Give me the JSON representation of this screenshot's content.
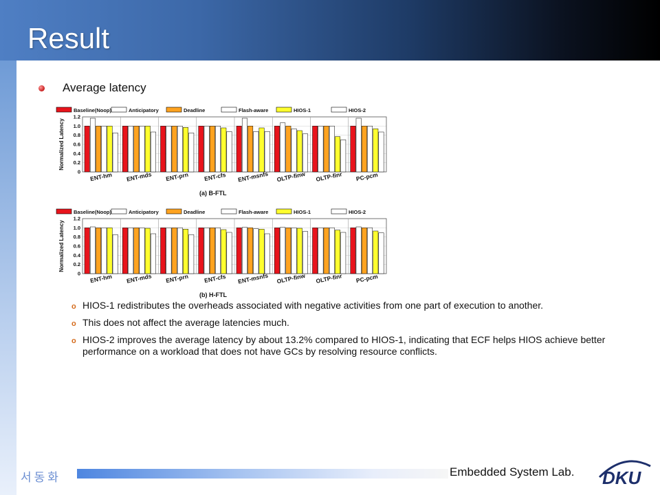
{
  "slide": {
    "title": "Result",
    "bullet": "Average latency",
    "sub_bullets": [
      "HIOS-1 redistributes the overheads associated with negative activities from one part of execution to another.",
      "This does not affect the average latencies much.",
      "HIOS-2 improves the average latency by about 13.2% compared to HIOS-1, indicating that ECF helps HIOS achieve better performance on a workload that does not have GCs by resolving resource conflicts."
    ],
    "footer_left": "서동화",
    "footer_lab": "Embedded System Lab.",
    "logo_text": "DKU"
  },
  "colors": {
    "header_start": "#4f7fc4",
    "header_end": "#000000",
    "bullet": "#c61b1b",
    "sub_marker": "#d46a1a",
    "footer_left": "#6b8ed2",
    "logo": "#1d2f6b"
  },
  "chart_data": [
    {
      "type": "bar",
      "title": "(a) B-FTL",
      "ylabel": "Normalized Latency",
      "ylim": [
        0,
        1.2
      ],
      "yticks": [
        0,
        0.2,
        0.4,
        0.6,
        0.8,
        1.0,
        1.2
      ],
      "ytick_labels": [
        "0",
        "0.2",
        "0.4",
        "0.6",
        "0.8",
        "1.0",
        "1.2"
      ],
      "categories": [
        "ENT-hm",
        "ENT-mds",
        "ENT-prn",
        "ENT-cfs",
        "ENT-msnfs",
        "OLTP-finw",
        "OLTP-finr",
        "PC-pcm"
      ],
      "legend_position": "top",
      "series": [
        {
          "name": "Baseline(Noop)",
          "color": "#e8141c",
          "values": [
            1.0,
            1.0,
            1.0,
            1.0,
            1.0,
            1.0,
            1.0,
            1.0
          ]
        },
        {
          "name": "Anticipatory",
          "color": "#ffffff",
          "values": [
            1.17,
            1.0,
            1.0,
            1.0,
            1.17,
            1.07,
            1.0,
            1.17
          ]
        },
        {
          "name": "Deadline",
          "color": "#ffa320",
          "values": [
            1.0,
            1.0,
            1.0,
            1.0,
            1.0,
            1.0,
            1.0,
            1.0
          ]
        },
        {
          "name": "Flash-aware",
          "color": "#ffffff",
          "values": [
            1.0,
            1.0,
            1.0,
            1.0,
            0.88,
            0.94,
            1.0,
            1.0
          ]
        },
        {
          "name": "HIOS-1",
          "color": "#ffff2e",
          "values": [
            1.0,
            1.0,
            0.97,
            0.96,
            0.96,
            0.9,
            0.77,
            0.94
          ]
        },
        {
          "name": "HIOS-2",
          "color": "#ffffff",
          "values": [
            0.85,
            0.87,
            0.85,
            0.88,
            0.88,
            0.83,
            0.7,
            0.87
          ]
        }
      ]
    },
    {
      "type": "bar",
      "title": "(b) H-FTL",
      "ylabel": "Normalized Latency",
      "ylim": [
        0,
        1.2
      ],
      "yticks": [
        0,
        0.2,
        0.4,
        0.6,
        0.8,
        1.0,
        1.2
      ],
      "ytick_labels": [
        "0",
        "0.2",
        "0.4",
        "0.6",
        "0.8",
        "1.0",
        "1.2"
      ],
      "categories": [
        "ENT-hm",
        "ENT-mds",
        "ENT-prn",
        "ENT-cfs",
        "ENT-msnfs",
        "OLTP-finw",
        "OLTP-finr",
        "PC-pcm"
      ],
      "legend_position": "top",
      "series": [
        {
          "name": "Baseline(Noop)",
          "color": "#e8141c",
          "values": [
            1.0,
            1.0,
            1.0,
            1.0,
            1.0,
            1.0,
            1.0,
            1.0
          ]
        },
        {
          "name": "Anticipatory",
          "color": "#ffffff",
          "values": [
            1.02,
            1.0,
            1.0,
            1.0,
            1.01,
            1.01,
            1.0,
            1.02
          ]
        },
        {
          "name": "Deadline",
          "color": "#ffa320",
          "values": [
            1.0,
            1.0,
            1.0,
            1.0,
            1.0,
            1.0,
            1.0,
            1.0
          ]
        },
        {
          "name": "Flash-aware",
          "color": "#ffffff",
          "values": [
            1.0,
            1.0,
            1.0,
            1.0,
            0.98,
            1.0,
            1.0,
            1.0
          ]
        },
        {
          "name": "HIOS-1",
          "color": "#ffff2e",
          "values": [
            1.0,
            0.99,
            0.97,
            0.96,
            0.97,
            0.99,
            0.95,
            0.93
          ]
        },
        {
          "name": "HIOS-2",
          "color": "#ffffff",
          "values": [
            0.85,
            0.87,
            0.85,
            0.9,
            0.87,
            0.92,
            0.9,
            0.89
          ]
        }
      ]
    }
  ]
}
